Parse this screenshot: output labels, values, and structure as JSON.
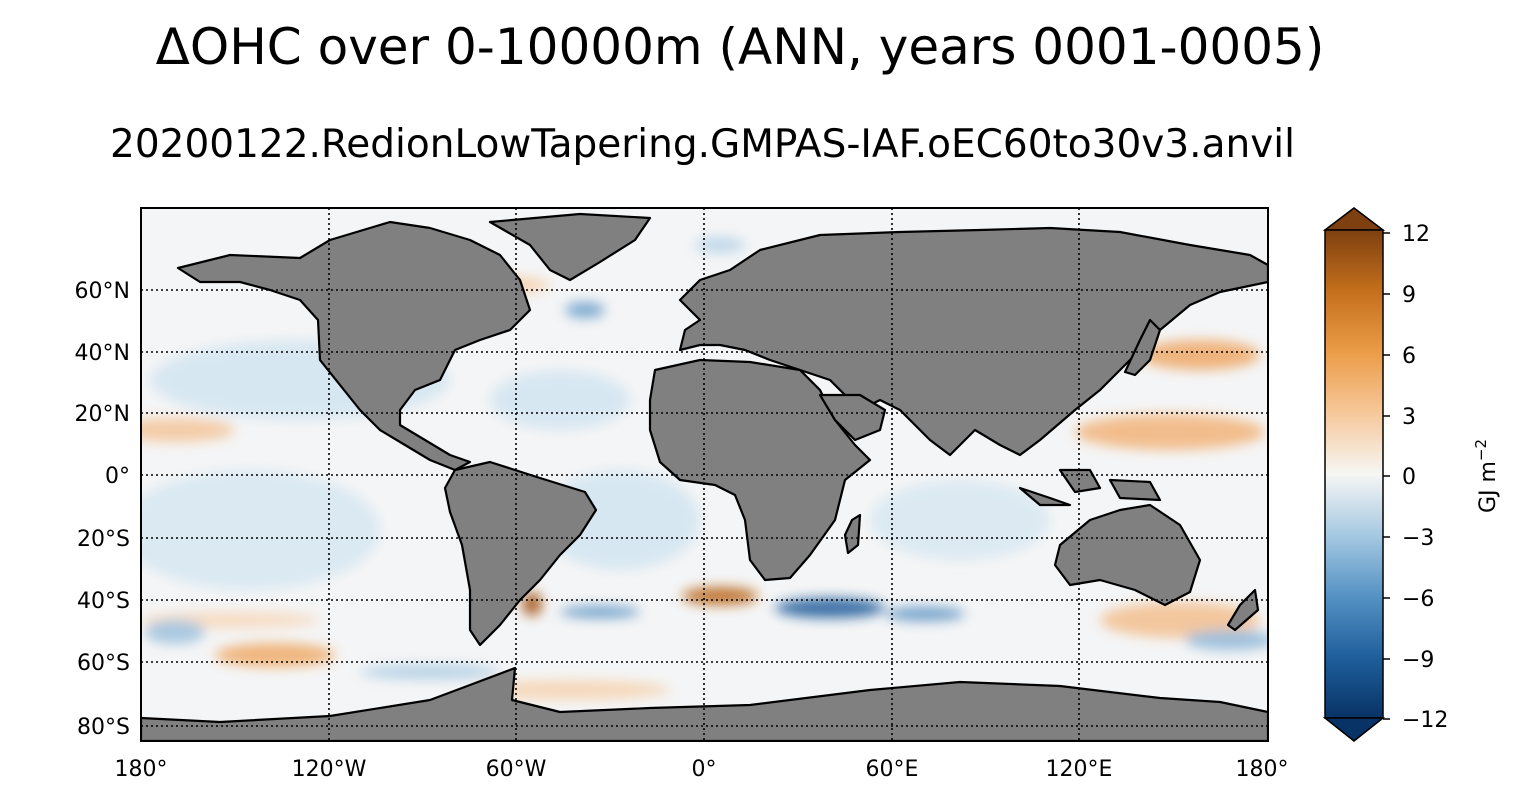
{
  "title": "ΔOHC over 0-10000m (ANN, years 0001-0005)",
  "subtitle": "20200122.RedionLowTapering.GMPAS-IAF.oEC60to30v3.anvil",
  "map": {
    "projection": "PlateCarree",
    "lon_range": [
      -180,
      180
    ],
    "lat_range": [
      -85,
      85
    ],
    "land_color": "#808080",
    "coast_color": "#000000",
    "gridlines": "dotted black",
    "lat_ticks": [
      {
        "value": 60,
        "label": "60°N"
      },
      {
        "value": 40,
        "label": "40°N"
      },
      {
        "value": 20,
        "label": "20°N"
      },
      {
        "value": 0,
        "label": "0°"
      },
      {
        "value": -20,
        "label": "20°S"
      },
      {
        "value": -40,
        "label": "40°S"
      },
      {
        "value": -60,
        "label": "60°S"
      },
      {
        "value": -80,
        "label": "80°S"
      }
    ],
    "lon_ticks": [
      {
        "value": -180,
        "label": "180°"
      },
      {
        "value": -120,
        "label": "120°W"
      },
      {
        "value": -60,
        "label": "60°W"
      },
      {
        "value": 0,
        "label": "0°"
      },
      {
        "value": 60,
        "label": "60°E"
      },
      {
        "value": 120,
        "label": "120°E"
      },
      {
        "value": 180,
        "label": "180°"
      }
    ]
  },
  "colorbar": {
    "label": "GJ m",
    "label_exponent": "−2",
    "range": [
      -12,
      12
    ],
    "extend": "both",
    "colormap": "diverging blue-white-orange-brown",
    "ticks": [
      {
        "value": 12,
        "label": "12"
      },
      {
        "value": 9,
        "label": "9"
      },
      {
        "value": 6,
        "label": "6"
      },
      {
        "value": 3,
        "label": "3"
      },
      {
        "value": 0,
        "label": "0"
      },
      {
        "value": -3,
        "label": "−3"
      },
      {
        "value": -6,
        "label": "−6"
      },
      {
        "value": -9,
        "label": "−9"
      },
      {
        "value": -12,
        "label": "−12"
      }
    ]
  }
}
